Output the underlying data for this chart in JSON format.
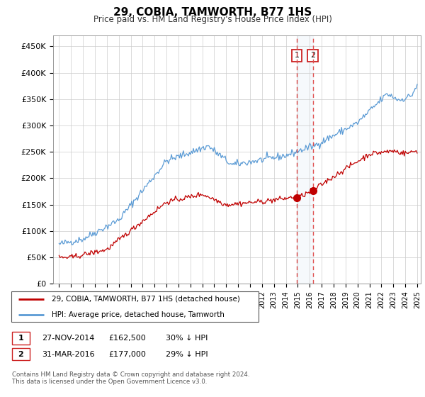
{
  "title": "29, COBIA, TAMWORTH, B77 1HS",
  "subtitle": "Price paid vs. HM Land Registry's House Price Index (HPI)",
  "ylim": [
    0,
    470000
  ],
  "yticks": [
    0,
    50000,
    100000,
    150000,
    200000,
    250000,
    300000,
    350000,
    400000,
    450000
  ],
  "ytick_labels": [
    "£0",
    "£50K",
    "£100K",
    "£150K",
    "£200K",
    "£250K",
    "£300K",
    "£350K",
    "£400K",
    "£450K"
  ],
  "legend_line1": "29, COBIA, TAMWORTH, B77 1HS (detached house)",
  "legend_line2": "HPI: Average price, detached house, Tamworth",
  "sale1_date": 2014.91,
  "sale1_price": 162500,
  "sale1_label": "1",
  "sale2_date": 2016.25,
  "sale2_price": 177000,
  "sale2_label": "2",
  "footer": "Contains HM Land Registry data © Crown copyright and database right 2024.\nThis data is licensed under the Open Government Licence v3.0.",
  "table_row1": [
    "1",
    "27-NOV-2014",
    "£162,500",
    "30% ↓ HPI"
  ],
  "table_row2": [
    "2",
    "31-MAR-2016",
    "£177,000",
    "29% ↓ HPI"
  ],
  "hpi_color": "#5b9bd5",
  "price_color": "#c00000",
  "annotation_box_color": "#dce8f5",
  "dashed_line_color": "#e05050",
  "xmin": 1995,
  "xmax": 2025
}
